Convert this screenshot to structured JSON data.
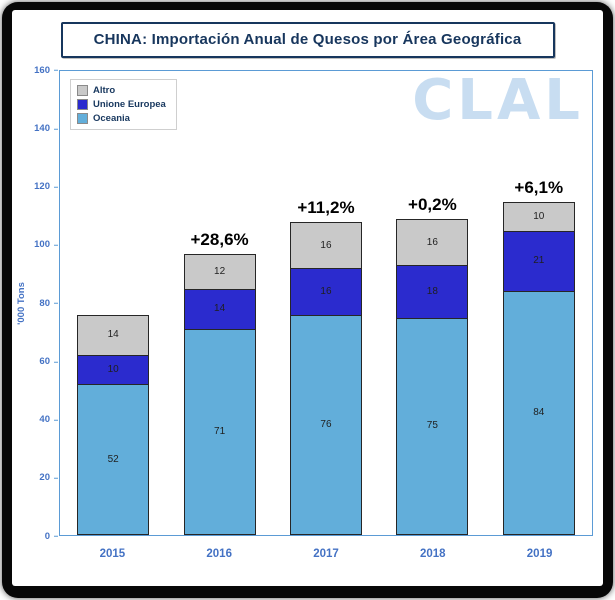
{
  "title": "CHINA: Importación Anual de Quesos por Área Geográfica",
  "watermark": "CLAL",
  "colors": {
    "oceania": "#62AEDA",
    "unione_europea": "#2B2BCE",
    "altro": "#C9C9C9",
    "axis_labels": "#4472C4",
    "title_text": "#17365D",
    "chart_border": "#5B9BD5"
  },
  "chart_data": {
    "type": "bar",
    "stacked": true,
    "title": "CHINA: Importación Anual de Quesos por Área Geográfica",
    "categories": [
      "2015",
      "2016",
      "2017",
      "2018",
      "2019"
    ],
    "series": [
      {
        "name": "Oceania",
        "color": "#62AEDA",
        "values": [
          52,
          71,
          76,
          75,
          84
        ]
      },
      {
        "name": "Unione Europea",
        "color": "#2B2BCE",
        "values": [
          10,
          14,
          16,
          18,
          21
        ]
      },
      {
        "name": "Altro",
        "color": "#C9C9C9",
        "values": [
          14,
          12,
          16,
          16,
          10
        ]
      }
    ],
    "totals": [
      76,
      97,
      108,
      109,
      115
    ],
    "annotations": [
      {
        "category": "2016",
        "label": "+28,6%"
      },
      {
        "category": "2017",
        "label": "+11,2%"
      },
      {
        "category": "2018",
        "label": "+0,2%"
      },
      {
        "category": "2019",
        "label": "+6,1%"
      }
    ],
    "xlabel": "",
    "ylabel": "'000 Tons",
    "ylim": [
      0,
      160
    ],
    "yticks": [
      0,
      20,
      40,
      60,
      80,
      100,
      120,
      140,
      160
    ],
    "legend": {
      "position": "top-left",
      "order": [
        "Altro",
        "Unione Europea",
        "Oceania"
      ]
    },
    "grid": false
  }
}
